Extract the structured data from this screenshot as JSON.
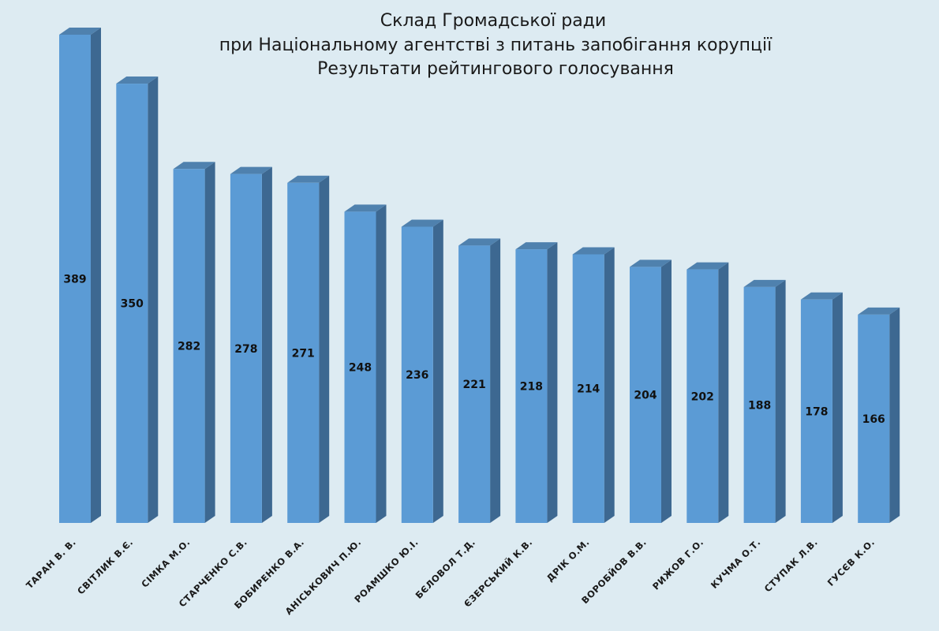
{
  "chart_data": {
    "type": "bar",
    "title": [
      "Склад Громадської ради",
      "при Національному агентстві з питань запобігання корупції",
      "Результати рейтингового голосування"
    ],
    "xlabel": "",
    "ylabel": "",
    "categories": [
      "ТАРАН В. В.",
      "СВІТЛИК В.Є.",
      "СІМКА М.О.",
      "СТАРЧЕНКО С.В.",
      "БОБИРЕНКО В.А.",
      "АНІСЬКОВИЧ П.Ю.",
      "РОАМШКО Ю.І.",
      "БЄЛОВОЛ Т.Д.",
      "ЄЗЕРСЬКИЙ К.В.",
      "ДРІК О.М.",
      "ВОРОБЙОВ В.В.",
      "РИЖОВ Г.О.",
      "КУЧМА О.Т.",
      "СТУПАК Л.В.",
      "ГУСЄВ К.О."
    ],
    "values": [
      389,
      350,
      282,
      278,
      271,
      248,
      236,
      221,
      218,
      214,
      204,
      202,
      188,
      178,
      166
    ],
    "ylim": [
      0,
      389
    ],
    "grid": false,
    "legend": "none",
    "colors": {
      "front": "#5b9bd5",
      "side": "#3d6891",
      "top": "#4f81ae",
      "background": "#ddebf2"
    }
  }
}
